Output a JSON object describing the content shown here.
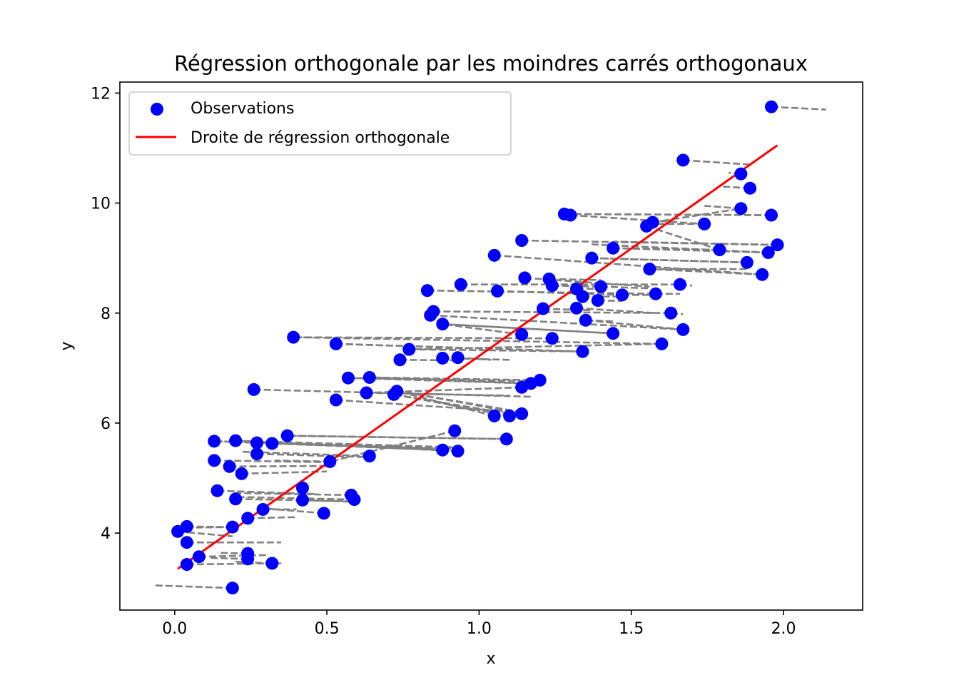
{
  "chart_data": {
    "type": "scatter",
    "title": "Régression orthogonale par les moindres carrés orthogonaux",
    "xlabel": "x",
    "ylabel": "y",
    "xlim": [
      -0.18,
      2.26
    ],
    "ylim": [
      2.6,
      12.2
    ],
    "xticks": [
      0.0,
      0.5,
      1.0,
      1.5,
      2.0
    ],
    "xtick_labels": [
      "0.0",
      "0.5",
      "1.0",
      "1.5",
      "2.0"
    ],
    "yticks": [
      4,
      6,
      8,
      10,
      12
    ],
    "ytick_labels": [
      "4",
      "6",
      "8",
      "10",
      "12"
    ],
    "grid": false,
    "legend": {
      "position": "top-left",
      "entries": [
        {
          "label": "Observations",
          "marker": "circle",
          "color": "#0000ff"
        },
        {
          "label": "Droite de régression orthogonale",
          "marker": "line",
          "color": "#ff0000"
        }
      ]
    },
    "series": [
      {
        "name": "Observations",
        "kind": "scatter",
        "color": "#0000ff",
        "points": [
          [
            0.01,
            4.03
          ],
          [
            0.04,
            4.12
          ],
          [
            0.04,
            3.83
          ],
          [
            0.04,
            3.43
          ],
          [
            0.08,
            3.57
          ],
          [
            0.19,
            3.0
          ],
          [
            0.24,
            3.63
          ],
          [
            0.24,
            3.53
          ],
          [
            0.32,
            3.45
          ],
          [
            0.19,
            4.11
          ],
          [
            0.24,
            4.27
          ],
          [
            0.29,
            4.43
          ],
          [
            0.14,
            4.77
          ],
          [
            0.2,
            4.62
          ],
          [
            0.42,
            4.82
          ],
          [
            0.42,
            4.6
          ],
          [
            0.49,
            4.36
          ],
          [
            0.58,
            4.69
          ],
          [
            0.59,
            4.61
          ],
          [
            0.13,
            5.32
          ],
          [
            0.18,
            5.21
          ],
          [
            0.22,
            5.08
          ],
          [
            0.27,
            5.44
          ],
          [
            0.13,
            5.67
          ],
          [
            0.2,
            5.68
          ],
          [
            0.27,
            5.64
          ],
          [
            0.32,
            5.63
          ],
          [
            0.37,
            5.77
          ],
          [
            0.51,
            5.3
          ],
          [
            0.64,
            5.4
          ],
          [
            0.26,
            6.61
          ],
          [
            0.53,
            6.42
          ],
          [
            0.57,
            6.82
          ],
          [
            0.64,
            6.83
          ],
          [
            0.63,
            6.55
          ],
          [
            0.72,
            6.52
          ],
          [
            0.73,
            6.58
          ],
          [
            0.74,
            7.15
          ],
          [
            0.77,
            7.34
          ],
          [
            0.39,
            7.56
          ],
          [
            0.53,
            7.44
          ],
          [
            0.88,
            7.18
          ],
          [
            0.93,
            7.19
          ],
          [
            0.83,
            8.41
          ],
          [
            0.84,
            7.96
          ],
          [
            0.85,
            8.03
          ],
          [
            0.88,
            7.8
          ],
          [
            0.94,
            8.52
          ],
          [
            1.06,
            8.4
          ],
          [
            1.05,
            9.05
          ],
          [
            1.14,
            9.32
          ],
          [
            1.15,
            8.64
          ],
          [
            1.23,
            8.62
          ],
          [
            1.24,
            8.5
          ],
          [
            1.21,
            8.08
          ],
          [
            1.32,
            8.44
          ],
          [
            1.34,
            8.3
          ],
          [
            1.32,
            8.09
          ],
          [
            1.35,
            7.87
          ],
          [
            1.4,
            8.48
          ],
          [
            1.39,
            8.23
          ],
          [
            1.47,
            8.33
          ],
          [
            1.44,
            9.18
          ],
          [
            1.37,
            9.0
          ],
          [
            1.28,
            9.8
          ],
          [
            1.3,
            9.78
          ],
          [
            1.55,
            9.58
          ],
          [
            1.57,
            9.65
          ],
          [
            1.56,
            8.8
          ],
          [
            1.58,
            8.35
          ],
          [
            1.66,
            8.52
          ],
          [
            1.63,
            8.0
          ],
          [
            1.67,
            10.78
          ],
          [
            1.74,
            9.62
          ],
          [
            1.79,
            9.15
          ],
          [
            1.86,
            10.53
          ],
          [
            1.86,
            9.9
          ],
          [
            1.89,
            10.27
          ],
          [
            1.96,
            11.75
          ],
          [
            1.96,
            9.78
          ],
          [
            1.95,
            9.1
          ],
          [
            1.98,
            9.24
          ],
          [
            1.88,
            8.92
          ],
          [
            1.93,
            8.7
          ],
          [
            1.67,
            7.7
          ],
          [
            1.6,
            7.44
          ],
          [
            1.44,
            7.63
          ],
          [
            1.34,
            7.3
          ],
          [
            1.24,
            7.54
          ],
          [
            1.14,
            7.61
          ],
          [
            1.2,
            6.78
          ],
          [
            1.17,
            6.72
          ],
          [
            1.14,
            6.65
          ],
          [
            1.05,
            6.13
          ],
          [
            1.1,
            6.13
          ],
          [
            1.14,
            6.17
          ],
          [
            0.92,
            5.86
          ],
          [
            0.88,
            5.51
          ],
          [
            0.93,
            5.49
          ],
          [
            1.09,
            5.71
          ]
        ]
      },
      {
        "name": "Droite de régression orthogonale",
        "kind": "line",
        "color": "#ff0000",
        "x": [
          0.01,
          1.98
        ],
        "y": [
          3.35,
          11.05
        ]
      },
      {
        "kind": "projection-segments",
        "color": "#808080",
        "segments": [
          [
            0.01,
            4.03,
            0.19,
            3.94
          ],
          [
            0.04,
            4.12,
            0.18,
            4.11
          ],
          [
            0.04,
            3.83,
            0.35,
            3.83
          ],
          [
            0.04,
            3.43,
            0.35,
            3.45
          ],
          [
            0.08,
            3.57,
            0.3,
            3.6
          ],
          [
            0.19,
            3.0,
            -0.07,
            3.05
          ],
          [
            0.24,
            3.63,
            0.14,
            3.64
          ],
          [
            0.24,
            3.53,
            0.11,
            3.55
          ],
          [
            0.32,
            3.45,
            0.2,
            3.48
          ],
          [
            0.19,
            4.11,
            0.07,
            4.1
          ],
          [
            0.24,
            4.27,
            0.4,
            4.29
          ],
          [
            0.29,
            4.43,
            0.4,
            4.43
          ],
          [
            0.14,
            4.77,
            0.47,
            4.71
          ],
          [
            0.2,
            4.62,
            0.58,
            4.58
          ],
          [
            0.42,
            4.82,
            0.4,
            4.82
          ],
          [
            0.42,
            4.6,
            0.58,
            4.57
          ],
          [
            0.49,
            4.36,
            0.29,
            4.45
          ],
          [
            0.58,
            4.69,
            0.19,
            4.73
          ],
          [
            0.59,
            4.61,
            0.18,
            4.66
          ],
          [
            0.13,
            5.32,
            0.5,
            5.29
          ],
          [
            0.18,
            5.21,
            0.5,
            5.22
          ],
          [
            0.22,
            5.08,
            0.5,
            5.12
          ],
          [
            0.27,
            5.44,
            0.64,
            5.38
          ],
          [
            0.13,
            5.67,
            0.93,
            5.53
          ],
          [
            0.2,
            5.68,
            0.92,
            5.56
          ],
          [
            0.27,
            5.64,
            0.89,
            5.53
          ],
          [
            0.32,
            5.63,
            0.85,
            5.54
          ],
          [
            0.37,
            5.77,
            1.09,
            5.71
          ],
          [
            0.51,
            5.3,
            0.33,
            5.32
          ],
          [
            0.64,
            5.4,
            0.22,
            5.48
          ],
          [
            0.26,
            6.61,
            1.17,
            6.48
          ],
          [
            0.53,
            6.42,
            1.13,
            6.2
          ],
          [
            0.57,
            6.82,
            1.21,
            6.76
          ],
          [
            0.64,
            6.83,
            1.17,
            6.72
          ],
          [
            0.63,
            6.55,
            1.1,
            6.5
          ],
          [
            0.72,
            6.52,
            1.1,
            6.17
          ],
          [
            0.73,
            6.58,
            1.14,
            6.2
          ],
          [
            0.74,
            7.15,
            0.93,
            7.14
          ],
          [
            0.77,
            7.34,
            1.36,
            7.3
          ],
          [
            0.39,
            7.56,
            1.6,
            7.44
          ],
          [
            0.53,
            7.44,
            1.34,
            7.3
          ],
          [
            0.88,
            7.18,
            1.1,
            7.15
          ],
          [
            0.93,
            7.19,
            1.04,
            7.15
          ],
          [
            0.83,
            8.41,
            1.58,
            8.35
          ],
          [
            0.84,
            7.96,
            1.67,
            7.7
          ],
          [
            0.85,
            8.03,
            1.64,
            8.0
          ],
          [
            0.88,
            7.8,
            1.44,
            7.63
          ],
          [
            0.94,
            8.52,
            1.66,
            8.52
          ],
          [
            1.06,
            8.4,
            1.47,
            8.33
          ],
          [
            1.05,
            9.05,
            1.93,
            8.7
          ],
          [
            1.14,
            9.32,
            1.98,
            9.24
          ],
          [
            1.15,
            8.64,
            1.56,
            8.48
          ],
          [
            1.23,
            8.62,
            1.4,
            8.6
          ],
          [
            1.24,
            8.5,
            1.39,
            8.48
          ],
          [
            1.21,
            8.08,
            1.37,
            8.05
          ],
          [
            1.32,
            8.44,
            1.4,
            8.44
          ],
          [
            1.34,
            8.3,
            1.47,
            8.3
          ],
          [
            1.32,
            8.09,
            1.58,
            8.0
          ],
          [
            1.35,
            7.87,
            1.44,
            7.85
          ],
          [
            1.4,
            8.48,
            1.56,
            8.45
          ],
          [
            1.39,
            8.23,
            1.47,
            8.22
          ],
          [
            1.47,
            8.33,
            1.58,
            8.33
          ],
          [
            1.44,
            9.18,
            1.95,
            9.1
          ],
          [
            1.37,
            9.0,
            1.88,
            8.92
          ],
          [
            1.28,
            9.8,
            1.95,
            9.78
          ],
          [
            1.3,
            9.78,
            1.74,
            9.62
          ],
          [
            1.55,
            9.58,
            1.79,
            9.15
          ],
          [
            1.57,
            9.65,
            1.86,
            9.9
          ],
          [
            1.56,
            8.8,
            1.88,
            8.8
          ],
          [
            1.58,
            8.35,
            1.66,
            8.35
          ],
          [
            1.66,
            8.52,
            1.7,
            8.5
          ],
          [
            1.63,
            8.0,
            1.67,
            7.98
          ],
          [
            1.67,
            10.78,
            1.89,
            10.7
          ],
          [
            1.74,
            9.62,
            1.55,
            9.62
          ],
          [
            1.79,
            9.15,
            1.44,
            9.18
          ],
          [
            1.86,
            10.53,
            1.82,
            10.55
          ],
          [
            1.86,
            9.9,
            1.74,
            9.95
          ],
          [
            1.89,
            10.27,
            1.8,
            10.3
          ],
          [
            1.96,
            11.75,
            2.14,
            11.7
          ],
          [
            1.96,
            9.78,
            1.3,
            9.8
          ],
          [
            1.95,
            9.1,
            1.37,
            9.25
          ],
          [
            1.98,
            9.24,
            1.44,
            9.3
          ],
          [
            1.88,
            8.92,
            1.36,
            9.0
          ],
          [
            1.93,
            8.7,
            1.56,
            8.8
          ],
          [
            1.67,
            7.7,
            1.35,
            7.87
          ],
          [
            1.6,
            7.44,
            0.77,
            7.34
          ],
          [
            1.44,
            7.63,
            0.88,
            7.8
          ],
          [
            1.34,
            7.3,
            0.53,
            7.44
          ],
          [
            1.24,
            7.54,
            0.39,
            7.56
          ],
          [
            1.14,
            7.61,
            0.88,
            7.8
          ],
          [
            1.2,
            6.78,
            0.64,
            6.83
          ],
          [
            1.17,
            6.72,
            0.57,
            6.82
          ],
          [
            1.14,
            6.65,
            0.63,
            6.55
          ],
          [
            1.05,
            6.13,
            0.73,
            6.58
          ],
          [
            1.1,
            6.13,
            0.72,
            6.52
          ],
          [
            1.14,
            6.17,
            0.74,
            6.58
          ],
          [
            0.92,
            5.86,
            0.51,
            5.3
          ],
          [
            0.88,
            5.51,
            0.13,
            5.67
          ],
          [
            0.93,
            5.49,
            0.2,
            5.68
          ],
          [
            1.09,
            5.71,
            0.37,
            5.77
          ]
        ]
      }
    ]
  }
}
